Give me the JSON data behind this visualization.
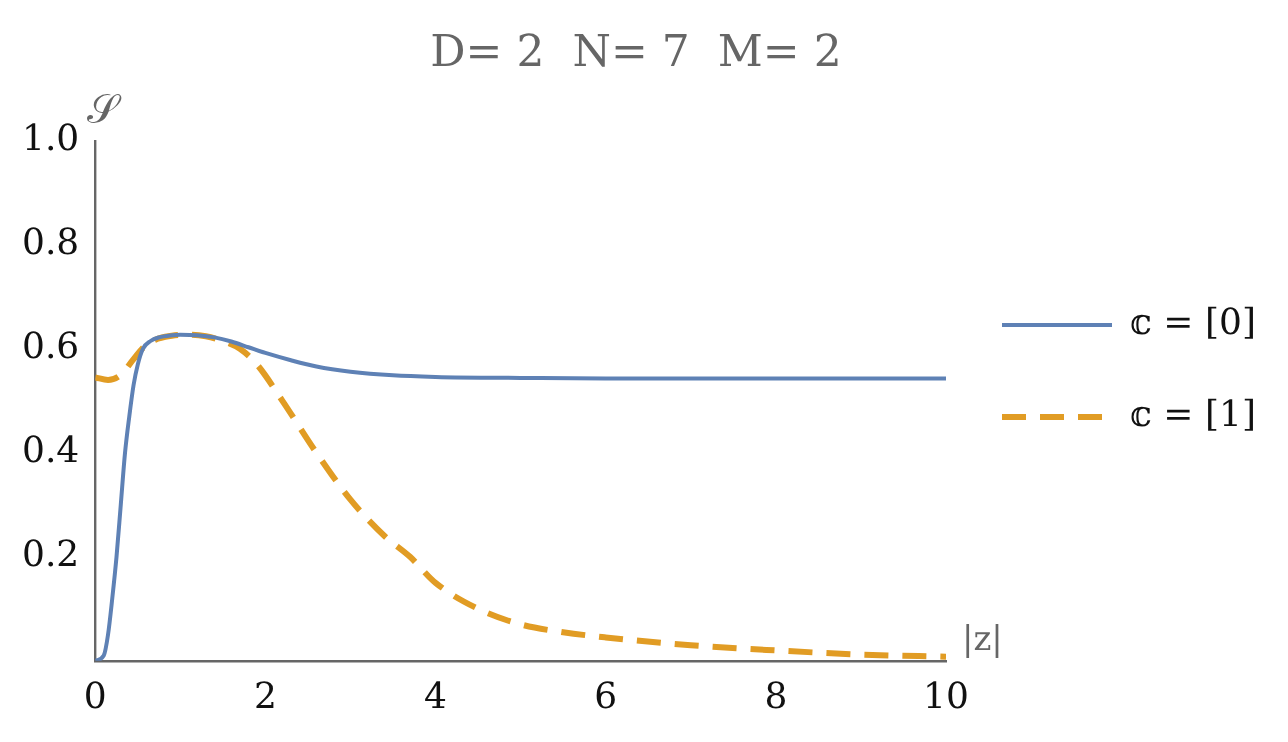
{
  "chart_data": {
    "type": "line",
    "title": "D= 2  N= 7  M= 2",
    "xlabel": "|z|",
    "ylabel": "𝒮",
    "xlim": [
      0,
      10
    ],
    "ylim": [
      0,
      1
    ],
    "xticks": [
      0,
      2,
      4,
      6,
      8,
      10
    ],
    "yticks": [
      0.2,
      0.4,
      0.6,
      0.8,
      {
        "value": 1,
        "label": "1.0"
      }
    ],
    "grid": false,
    "legend": "right",
    "marker": "none",
    "series": [
      {
        "name": "𝕔 = [0]",
        "color": "#5e81b5",
        "line_style": "solid",
        "x": [
          0,
          0.1,
          0.15,
          0.2,
          0.25,
          0.3,
          0.35,
          0.4,
          0.45,
          0.5,
          0.56,
          0.65,
          0.75,
          0.9,
          1.0,
          1.2,
          1.4,
          1.6,
          1.8,
          2.0,
          2.3,
          2.6,
          3.0,
          3.5,
          4.0,
          5.0,
          6.0,
          8.0,
          10.0
        ],
        "values": [
          0,
          0.01,
          0.05,
          0.12,
          0.2,
          0.3,
          0.4,
          0.47,
          0.53,
          0.57,
          0.6,
          0.615,
          0.622,
          0.626,
          0.627,
          0.626,
          0.622,
          0.614,
          0.603,
          0.592,
          0.578,
          0.566,
          0.556,
          0.549,
          0.546,
          0.544,
          0.543,
          0.543,
          0.543
        ]
      },
      {
        "name": "𝕔 = [1]",
        "color": "#e19c24",
        "line_style": "dashed",
        "x": [
          0,
          0.15,
          0.3,
          0.45,
          0.55,
          0.7,
          0.9,
          1.1,
          1.3,
          1.5,
          1.7,
          1.9,
          2.2,
          2.6,
          3.0,
          3.4,
          3.7,
          4.0,
          4.5,
          5.0,
          5.5,
          6.0,
          7.0,
          8.0,
          9.0,
          10.0
        ],
        "values": [
          0.545,
          0.54,
          0.55,
          0.58,
          0.6,
          0.617,
          0.625,
          0.627,
          0.624,
          0.615,
          0.6,
          0.57,
          0.5,
          0.4,
          0.31,
          0.24,
          0.2,
          0.15,
          0.1,
          0.07,
          0.055,
          0.045,
          0.03,
          0.02,
          0.012,
          0.008
        ]
      }
    ]
  }
}
